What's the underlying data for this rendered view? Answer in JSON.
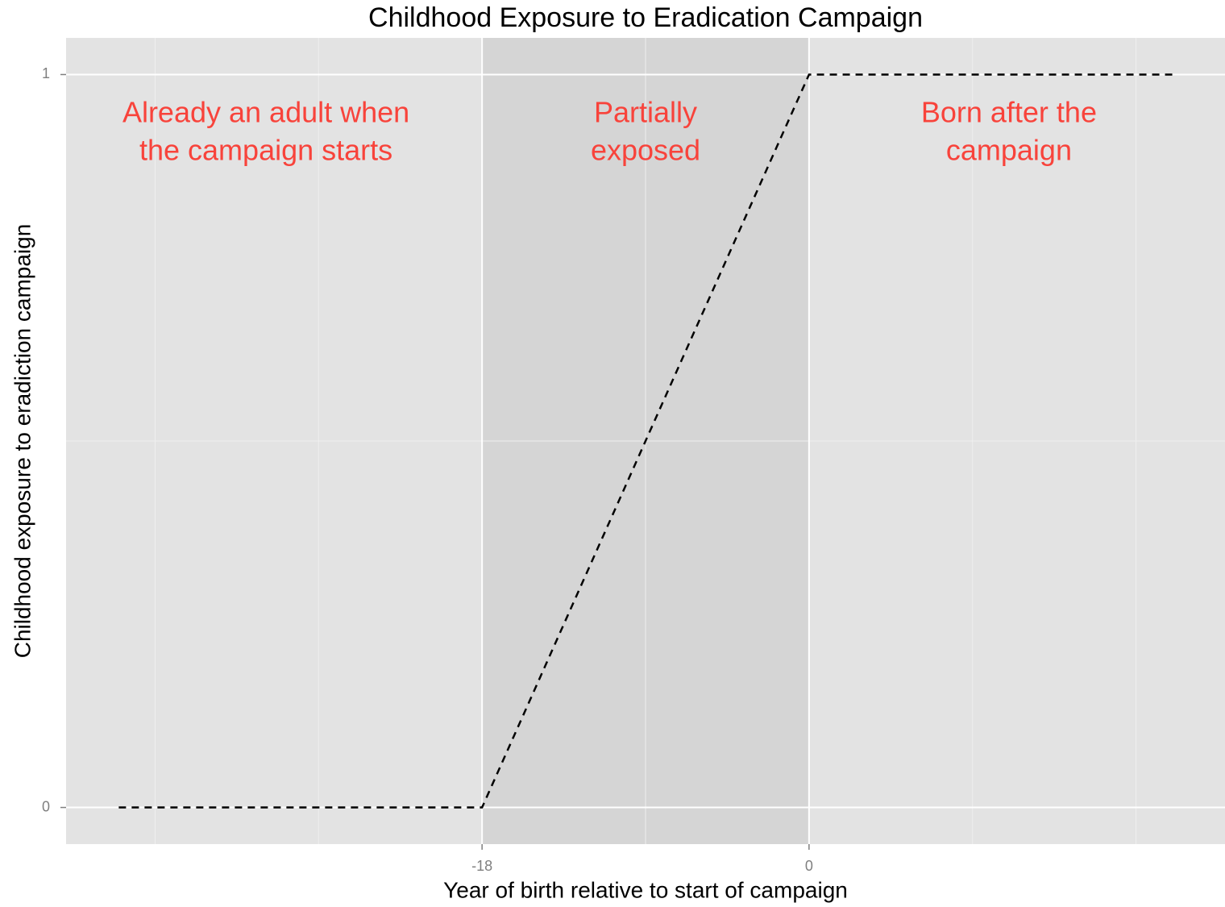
{
  "chart_data": {
    "type": "line",
    "title": "Childhood Exposure to Eradication Campaign",
    "x_label": "Year of birth relative to start of campaign",
    "y_label": "Childhood exposure to eradiction campaign",
    "x": [
      -38,
      -18,
      0,
      20
    ],
    "series": [
      {
        "color": "#000000",
        "values": [
          0,
          0,
          1,
          1
        ],
        "dash": true
      }
    ],
    "xlim": [
      -40.9,
      22.9
    ],
    "ylim": [
      -0.05,
      1.05
    ],
    "xticks": [
      -18,
      0
    ],
    "yticks": [
      0,
      1
    ],
    "x_minor_grid": [
      -36,
      -27,
      -9,
      9,
      18
    ],
    "y_minor_grid": [
      0.5
    ],
    "grid": true,
    "shaded_region": [
      -18,
      0
    ],
    "annotations": [
      [
        "Already an adult when",
        "the campaign starts"
      ],
      [
        "Partially",
        "exposed"
      ],
      [
        "Born after the",
        "campaign"
      ]
    ],
    "annotation_color": "#f8433b"
  }
}
